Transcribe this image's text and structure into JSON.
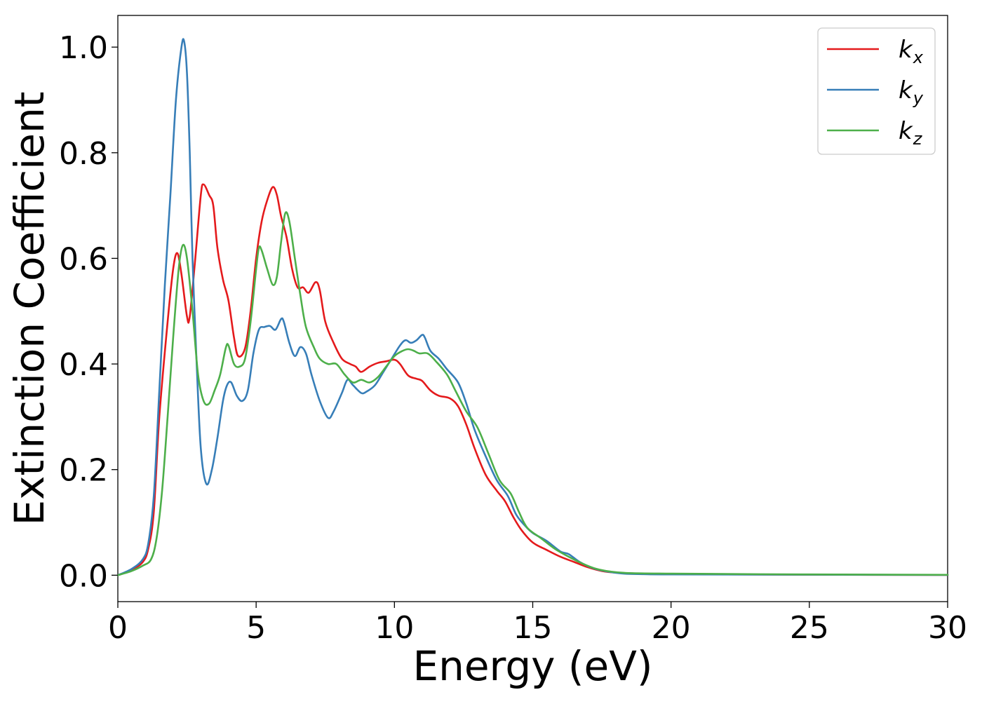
{
  "chart_data": {
    "type": "line",
    "xlabel": "Energy (eV)",
    "ylabel": "Extinction Coefficient",
    "xlim": [
      0,
      30
    ],
    "ylim": [
      -0.05,
      1.06
    ],
    "xticks": [
      0,
      5,
      10,
      15,
      20,
      25,
      30
    ],
    "yticks": [
      0.0,
      0.2,
      0.4,
      0.6,
      0.8,
      1.0
    ],
    "xtick_labels": [
      "0",
      "5",
      "10",
      "15",
      "20",
      "25",
      "30"
    ],
    "ytick_labels": [
      "0.0",
      "0.2",
      "0.4",
      "0.6",
      "0.8",
      "1.0"
    ],
    "grid": false,
    "legend_position": "top-right",
    "series": [
      {
        "name": "k_x",
        "label_base": "k",
        "label_sub": "x",
        "color": "#e41a1c",
        "points": [
          [
            0,
            0
          ],
          [
            0.5,
            0.01
          ],
          [
            0.9,
            0.025
          ],
          [
            1.1,
            0.05
          ],
          [
            1.3,
            0.12
          ],
          [
            1.5,
            0.3
          ],
          [
            1.8,
            0.48
          ],
          [
            2.0,
            0.58
          ],
          [
            2.15,
            0.61
          ],
          [
            2.3,
            0.57
          ],
          [
            2.5,
            0.49
          ],
          [
            2.6,
            0.49
          ],
          [
            2.8,
            0.6
          ],
          [
            3.0,
            0.72
          ],
          [
            3.1,
            0.74
          ],
          [
            3.3,
            0.72
          ],
          [
            3.45,
            0.7
          ],
          [
            3.6,
            0.62
          ],
          [
            3.8,
            0.56
          ],
          [
            4.0,
            0.52
          ],
          [
            4.2,
            0.45
          ],
          [
            4.35,
            0.415
          ],
          [
            4.6,
            0.43
          ],
          [
            4.8,
            0.5
          ],
          [
            5.0,
            0.6
          ],
          [
            5.2,
            0.67
          ],
          [
            5.4,
            0.71
          ],
          [
            5.6,
            0.735
          ],
          [
            5.75,
            0.72
          ],
          [
            5.9,
            0.68
          ],
          [
            6.1,
            0.64
          ],
          [
            6.3,
            0.58
          ],
          [
            6.5,
            0.545
          ],
          [
            6.7,
            0.545
          ],
          [
            6.9,
            0.535
          ],
          [
            7.15,
            0.555
          ],
          [
            7.3,
            0.54
          ],
          [
            7.5,
            0.48
          ],
          [
            7.8,
            0.44
          ],
          [
            8.1,
            0.41
          ],
          [
            8.4,
            0.4
          ],
          [
            8.6,
            0.395
          ],
          [
            8.8,
            0.385
          ],
          [
            9.1,
            0.395
          ],
          [
            9.4,
            0.402
          ],
          [
            9.7,
            0.405
          ],
          [
            10.0,
            0.408
          ],
          [
            10.2,
            0.4
          ],
          [
            10.5,
            0.378
          ],
          [
            10.8,
            0.372
          ],
          [
            11.0,
            0.368
          ],
          [
            11.3,
            0.35
          ],
          [
            11.6,
            0.34
          ],
          [
            12.0,
            0.335
          ],
          [
            12.3,
            0.32
          ],
          [
            12.6,
            0.285
          ],
          [
            12.9,
            0.24
          ],
          [
            13.3,
            0.19
          ],
          [
            13.7,
            0.16
          ],
          [
            14.0,
            0.14
          ],
          [
            14.3,
            0.11
          ],
          [
            14.6,
            0.085
          ],
          [
            15.0,
            0.062
          ],
          [
            15.5,
            0.048
          ],
          [
            16.0,
            0.035
          ],
          [
            16.5,
            0.025
          ],
          [
            17.0,
            0.015
          ],
          [
            17.5,
            0.008
          ],
          [
            18.0,
            0.005
          ],
          [
            19,
            0.003
          ],
          [
            20,
            0.002
          ],
          [
            22,
            0.0015
          ],
          [
            25,
            0.001
          ],
          [
            30,
            0.0005
          ]
        ]
      },
      {
        "name": "k_y",
        "label_base": "k",
        "label_sub": "y",
        "color": "#377eb8",
        "points": [
          [
            0,
            0
          ],
          [
            0.5,
            0.012
          ],
          [
            0.9,
            0.03
          ],
          [
            1.1,
            0.06
          ],
          [
            1.3,
            0.15
          ],
          [
            1.5,
            0.35
          ],
          [
            1.7,
            0.55
          ],
          [
            1.9,
            0.72
          ],
          [
            2.1,
            0.9
          ],
          [
            2.3,
            1.0
          ],
          [
            2.4,
            1.01
          ],
          [
            2.5,
            0.95
          ],
          [
            2.6,
            0.8
          ],
          [
            2.7,
            0.6
          ],
          [
            2.85,
            0.4
          ],
          [
            3.0,
            0.24
          ],
          [
            3.2,
            0.173
          ],
          [
            3.4,
            0.2
          ],
          [
            3.6,
            0.26
          ],
          [
            3.8,
            0.33
          ],
          [
            3.95,
            0.36
          ],
          [
            4.1,
            0.365
          ],
          [
            4.3,
            0.34
          ],
          [
            4.5,
            0.33
          ],
          [
            4.7,
            0.35
          ],
          [
            4.9,
            0.42
          ],
          [
            5.1,
            0.465
          ],
          [
            5.3,
            0.47
          ],
          [
            5.5,
            0.472
          ],
          [
            5.7,
            0.465
          ],
          [
            5.9,
            0.485
          ],
          [
            6.0,
            0.48
          ],
          [
            6.2,
            0.44
          ],
          [
            6.4,
            0.415
          ],
          [
            6.6,
            0.432
          ],
          [
            6.8,
            0.42
          ],
          [
            7.0,
            0.38
          ],
          [
            7.3,
            0.33
          ],
          [
            7.6,
            0.298
          ],
          [
            7.8,
            0.31
          ],
          [
            8.1,
            0.345
          ],
          [
            8.3,
            0.37
          ],
          [
            8.5,
            0.36
          ],
          [
            8.8,
            0.345
          ],
          [
            9.0,
            0.348
          ],
          [
            9.3,
            0.36
          ],
          [
            9.6,
            0.385
          ],
          [
            9.9,
            0.41
          ],
          [
            10.2,
            0.435
          ],
          [
            10.4,
            0.445
          ],
          [
            10.6,
            0.44
          ],
          [
            10.8,
            0.445
          ],
          [
            11.0,
            0.455
          ],
          [
            11.1,
            0.45
          ],
          [
            11.3,
            0.425
          ],
          [
            11.6,
            0.41
          ],
          [
            11.9,
            0.39
          ],
          [
            12.3,
            0.365
          ],
          [
            12.6,
            0.325
          ],
          [
            12.9,
            0.275
          ],
          [
            13.3,
            0.225
          ],
          [
            13.7,
            0.18
          ],
          [
            14.1,
            0.15
          ],
          [
            14.4,
            0.115
          ],
          [
            14.7,
            0.095
          ],
          [
            15.0,
            0.08
          ],
          [
            15.5,
            0.065
          ],
          [
            16.0,
            0.045
          ],
          [
            16.3,
            0.04
          ],
          [
            16.7,
            0.025
          ],
          [
            17.2,
            0.013
          ],
          [
            17.7,
            0.007
          ],
          [
            18.3,
            0.003
          ],
          [
            19,
            0.002
          ],
          [
            20,
            0.0015
          ],
          [
            25,
            0.001
          ],
          [
            30,
            0.0005
          ]
        ]
      },
      {
        "name": "k_z",
        "label_base": "k",
        "label_sub": "z",
        "color": "#4daf4a",
        "points": [
          [
            0,
            0
          ],
          [
            0.5,
            0.008
          ],
          [
            0.9,
            0.018
          ],
          [
            1.2,
            0.03
          ],
          [
            1.4,
            0.07
          ],
          [
            1.6,
            0.16
          ],
          [
            1.8,
            0.3
          ],
          [
            2.0,
            0.45
          ],
          [
            2.2,
            0.58
          ],
          [
            2.35,
            0.625
          ],
          [
            2.5,
            0.6
          ],
          [
            2.7,
            0.5
          ],
          [
            2.9,
            0.38
          ],
          [
            3.1,
            0.33
          ],
          [
            3.3,
            0.325
          ],
          [
            3.5,
            0.35
          ],
          [
            3.7,
            0.38
          ],
          [
            3.9,
            0.43
          ],
          [
            4.0,
            0.435
          ],
          [
            4.2,
            0.4
          ],
          [
            4.4,
            0.395
          ],
          [
            4.6,
            0.41
          ],
          [
            4.8,
            0.48
          ],
          [
            5.0,
            0.58
          ],
          [
            5.1,
            0.62
          ],
          [
            5.2,
            0.615
          ],
          [
            5.4,
            0.58
          ],
          [
            5.6,
            0.55
          ],
          [
            5.75,
            0.565
          ],
          [
            5.9,
            0.63
          ],
          [
            6.05,
            0.685
          ],
          [
            6.2,
            0.67
          ],
          [
            6.4,
            0.6
          ],
          [
            6.6,
            0.53
          ],
          [
            6.8,
            0.47
          ],
          [
            7.1,
            0.43
          ],
          [
            7.3,
            0.41
          ],
          [
            7.6,
            0.4
          ],
          [
            7.9,
            0.4
          ],
          [
            8.2,
            0.38
          ],
          [
            8.5,
            0.365
          ],
          [
            8.8,
            0.37
          ],
          [
            9.1,
            0.365
          ],
          [
            9.4,
            0.375
          ],
          [
            9.7,
            0.395
          ],
          [
            10.0,
            0.415
          ],
          [
            10.3,
            0.425
          ],
          [
            10.5,
            0.428
          ],
          [
            10.7,
            0.425
          ],
          [
            10.9,
            0.42
          ],
          [
            11.2,
            0.42
          ],
          [
            11.5,
            0.405
          ],
          [
            11.9,
            0.38
          ],
          [
            12.2,
            0.35
          ],
          [
            12.6,
            0.31
          ],
          [
            13.0,
            0.28
          ],
          [
            13.4,
            0.23
          ],
          [
            13.8,
            0.18
          ],
          [
            14.2,
            0.155
          ],
          [
            14.5,
            0.12
          ],
          [
            14.8,
            0.09
          ],
          [
            15.3,
            0.07
          ],
          [
            15.8,
            0.05
          ],
          [
            16.3,
            0.035
          ],
          [
            16.8,
            0.022
          ],
          [
            17.3,
            0.012
          ],
          [
            17.8,
            0.007
          ],
          [
            18.5,
            0.004
          ],
          [
            20,
            0.003
          ],
          [
            25,
            0.0015
          ],
          [
            30,
            0.0008
          ]
        ]
      }
    ]
  }
}
